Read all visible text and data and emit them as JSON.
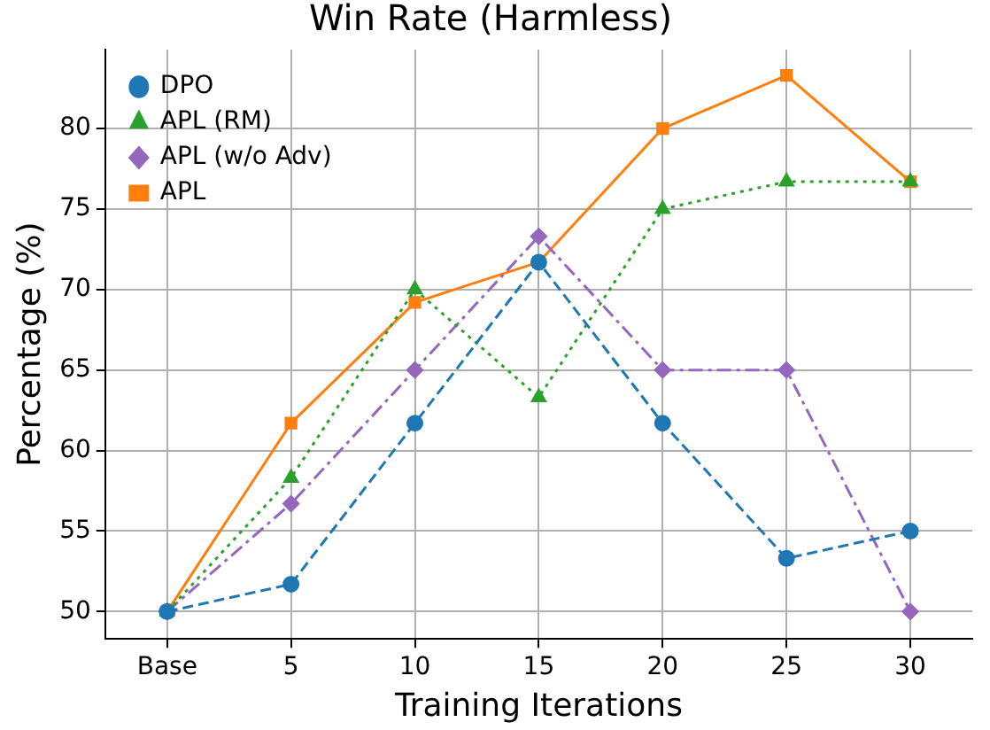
{
  "chart_data": {
    "type": "line",
    "title": "Win Rate (Harmless)",
    "xlabel": "Training Iterations",
    "ylabel": "Percentage (%)",
    "categories": [
      "Base",
      "5",
      "10",
      "15",
      "20",
      "25",
      "30"
    ],
    "series": [
      {
        "name": "DPO",
        "color": "#1f77b4",
        "marker": "circle",
        "line_style": "dashed",
        "values": [
          50,
          51.7,
          61.7,
          71.7,
          61.7,
          53.3,
          55
        ]
      },
      {
        "name": "APL (RM)",
        "color": "#2ca02c",
        "marker": "triangle",
        "line_style": "dotted",
        "values": [
          50,
          58.3,
          70,
          63.3,
          75,
          76.7,
          76.7
        ]
      },
      {
        "name": "APL (w/o Adv)",
        "color": "#9467bd",
        "marker": "diamond",
        "line_style": "dashdot",
        "values": [
          50,
          56.7,
          65,
          73.3,
          65,
          65,
          50
        ]
      },
      {
        "name": "APL",
        "color": "#ff7f0e",
        "marker": "square",
        "line_style": "solid",
        "values": [
          50,
          61.7,
          69.2,
          71.7,
          80,
          83.3,
          76.7
        ]
      }
    ],
    "ylim": [
      48.3,
      84.9
    ],
    "yticks": [
      50,
      55,
      60,
      65,
      70,
      75,
      80
    ],
    "grid": true,
    "legend": "top left"
  }
}
